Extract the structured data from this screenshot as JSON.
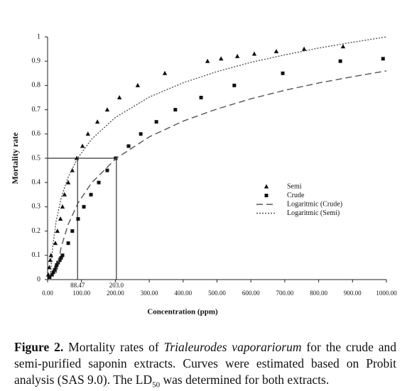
{
  "chart_data": {
    "type": "scatter",
    "xlabel": "Concentration (ppm)",
    "ylabel": "Mortality rate",
    "xlim": [
      0,
      1000
    ],
    "ylim": [
      0,
      1
    ],
    "xticks": [
      {
        "value": 0,
        "label": "0.00"
      },
      {
        "value": 100,
        "label": "100.00"
      },
      {
        "value": 200,
        "label": "200.00"
      },
      {
        "value": 300,
        "label": "300.00"
      },
      {
        "value": 400,
        "label": "400.00"
      },
      {
        "value": 500,
        "label": "500.00"
      },
      {
        "value": 600,
        "label": "600.00"
      },
      {
        "value": 700,
        "label": "700.00"
      },
      {
        "value": 800,
        "label": "800.00"
      },
      {
        "value": 900,
        "label": "900.00"
      },
      {
        "value": 1000,
        "label": "1000.00"
      }
    ],
    "yticks": [
      0,
      0.1,
      0.2,
      0.3,
      0.4,
      0.5,
      0.6,
      0.7,
      0.8,
      0.9,
      1
    ],
    "hline": 0.5,
    "vlines": [
      {
        "value": 88.47,
        "label": "88.47"
      },
      {
        "value": 203,
        "label": "203.0"
      }
    ],
    "series": [
      {
        "name": "Semi",
        "marker": "triangle",
        "color": "#111",
        "x": [
          2,
          5,
          8,
          10,
          23,
          29,
          38,
          44,
          50,
          61,
          73,
          86,
          103,
          119,
          147,
          176,
          212,
          266,
          346,
          472,
          512,
          560,
          610,
          675,
          757,
          872
        ],
        "values": [
          0.02,
          0.05,
          0.08,
          0.1,
          0.15,
          0.2,
          0.25,
          0.3,
          0.35,
          0.4,
          0.45,
          0.5,
          0.55,
          0.6,
          0.65,
          0.7,
          0.75,
          0.8,
          0.85,
          0.9,
          0.91,
          0.92,
          0.93,
          0.94,
          0.95,
          0.96
        ]
      },
      {
        "name": "Crude",
        "marker": "square",
        "color": "#111",
        "x": [
          6,
          13,
          17,
          21,
          25,
          27,
          31,
          36,
          40,
          44,
          61,
          73,
          90,
          107,
          128,
          151,
          176,
          201,
          239,
          275,
          321,
          377,
          453,
          551,
          694,
          864,
          990
        ],
        "values": [
          0.01,
          0.02,
          0.03,
          0.04,
          0.05,
          0.06,
          0.07,
          0.08,
          0.09,
          0.1,
          0.15,
          0.2,
          0.25,
          0.3,
          0.35,
          0.4,
          0.45,
          0.5,
          0.55,
          0.6,
          0.65,
          0.7,
          0.75,
          0.8,
          0.85,
          0.9,
          0.91
        ]
      },
      {
        "name": "Logaritmic (Crude)",
        "line": "dashed",
        "color": "#555",
        "x": [
          25,
          40,
          60,
          90,
          130,
          203,
          300,
          400,
          500,
          600,
          700,
          800,
          900,
          1000
        ],
        "values": [
          0.027,
          0.133,
          0.225,
          0.316,
          0.399,
          0.5,
          0.588,
          0.653,
          0.703,
          0.745,
          0.78,
          0.81,
          0.836,
          0.86
        ]
      },
      {
        "name": "Logaritmic (Semi)",
        "line": "dotted",
        "color": "#555",
        "x": [
          9,
          15,
          25,
          40,
          60,
          88.47,
          130,
          200,
          300,
          400,
          500,
          600,
          700,
          800,
          900,
          1000
        ],
        "values": [
          0.029,
          0.134,
          0.239,
          0.336,
          0.42,
          0.5,
          0.579,
          0.668,
          0.752,
          0.811,
          0.857,
          0.895,
          0.926,
          0.954,
          0.978,
          1.0
        ]
      }
    ]
  },
  "caption": [
    {
      "text": "Figure 2.",
      "style": "bold"
    },
    {
      "text": " Mortality rates of ",
      "style": "normal"
    },
    {
      "text": "Trialeurodes vaporariorum",
      "style": "italic"
    },
    {
      "text": " for the crude and semi-purified saponin extracts. Curves were estimated based on Probit analysis (SAS 9.0). The LD",
      "style": "normal"
    },
    {
      "text": "50",
      "style": "sub"
    },
    {
      "text": " was determined for both extracts.",
      "style": "normal"
    }
  ]
}
